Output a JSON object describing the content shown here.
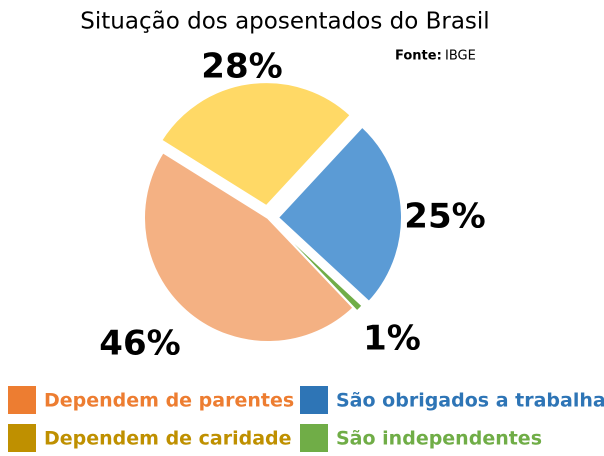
{
  "chart_data": {
    "type": "pie",
    "title": "Situação dos aposentados do Brasil",
    "source_label": "Fonte:",
    "source": "IBGE",
    "categories": [
      "Dependem de caridade",
      "São obrigados a trabalhar",
      "São independentes",
      "Dependem de parentes"
    ],
    "values": [
      28,
      25,
      1,
      46
    ],
    "value_labels": [
      "28%",
      "25%",
      "1%",
      "46%"
    ],
    "colors": [
      "#ffd966",
      "#5b9bd5",
      "#70ad47",
      "#f4b183"
    ],
    "legend_colors": [
      "#bf9000",
      "#2e75b6",
      "#70ad47",
      "#ed7d31"
    ]
  }
}
